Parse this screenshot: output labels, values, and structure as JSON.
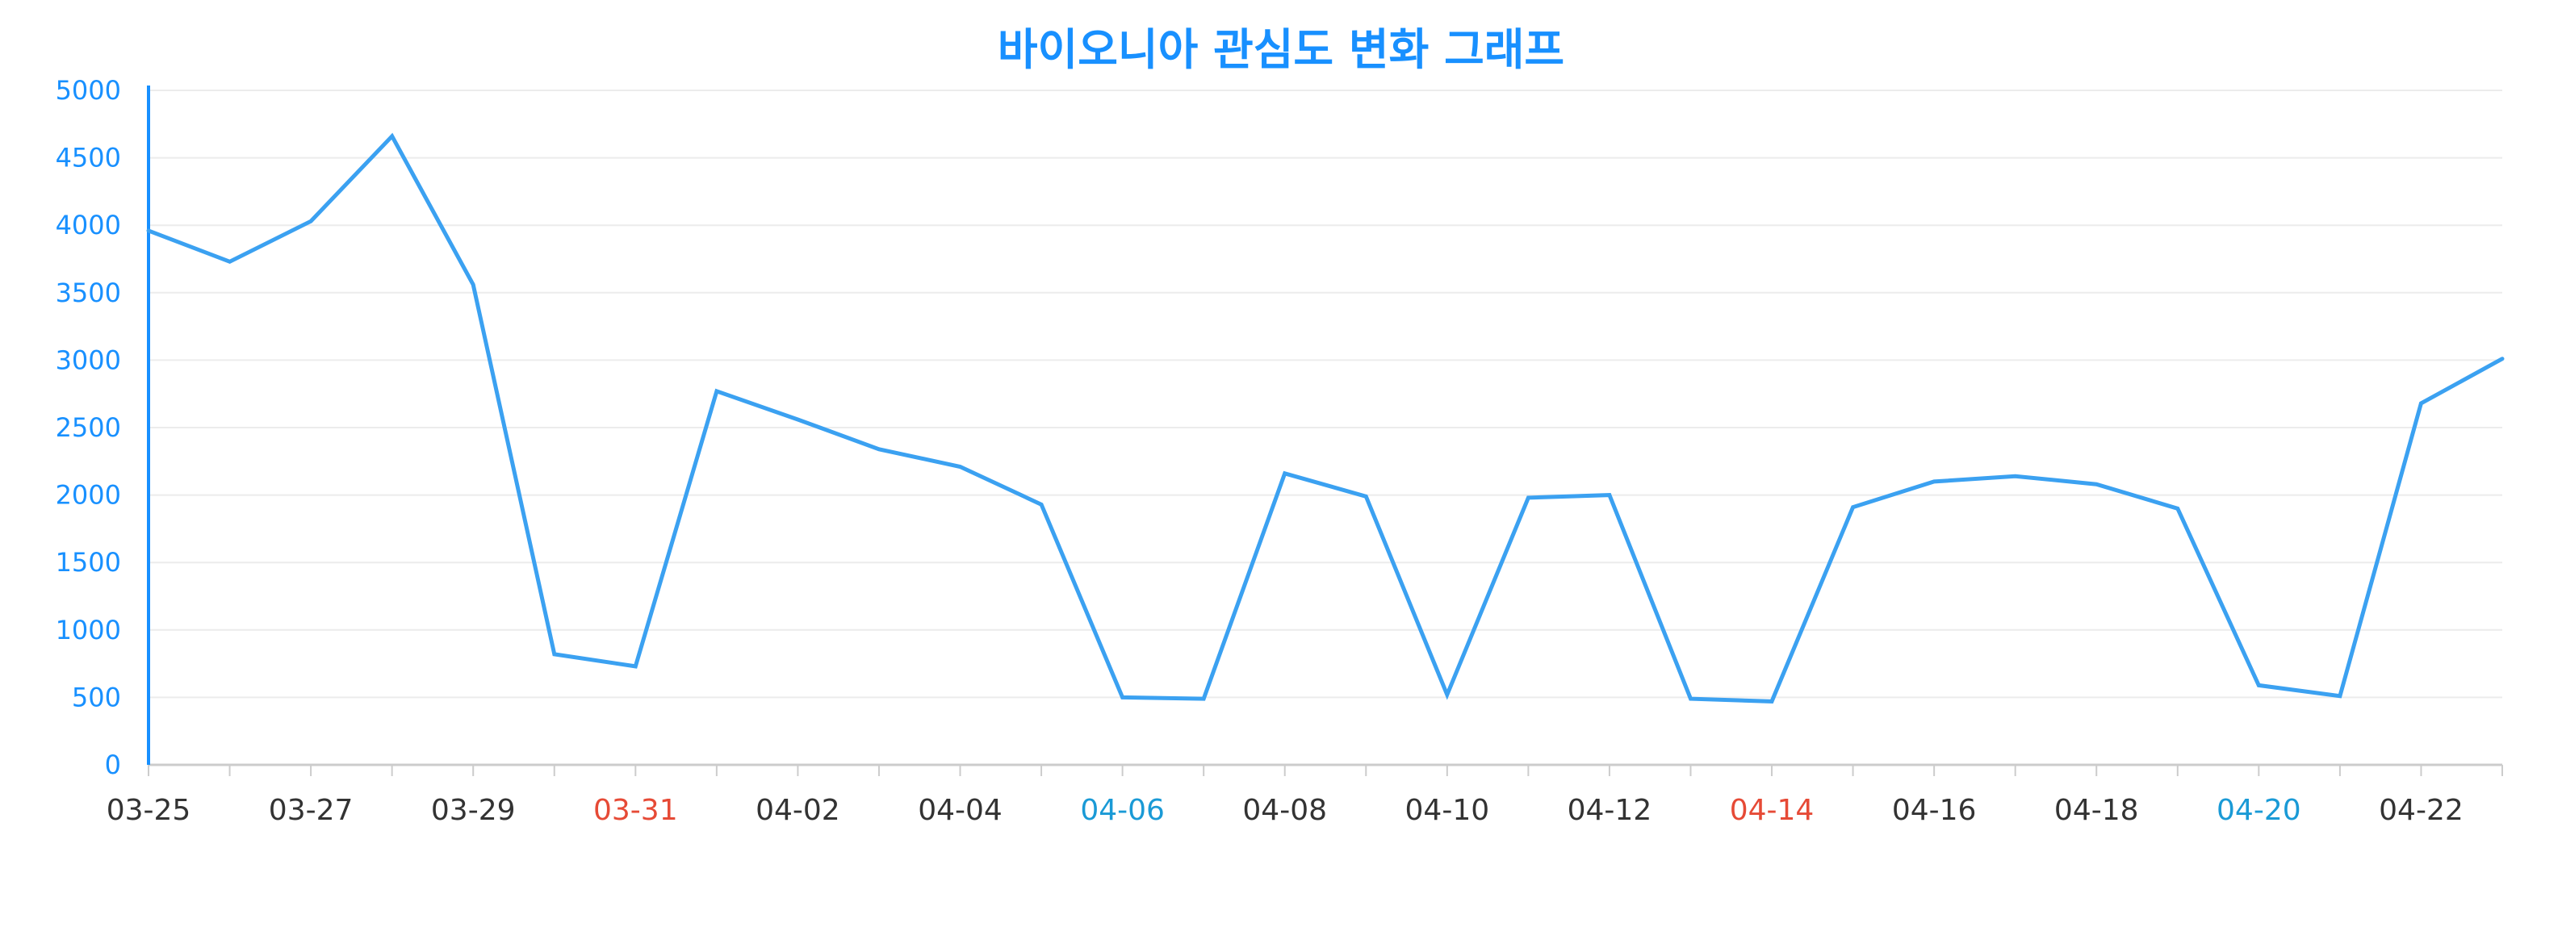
{
  "chart_data": {
    "type": "line",
    "title": "바이오니아 관심도 변화 그래프",
    "xlabel": "",
    "ylabel": "",
    "ylim": [
      0,
      5000
    ],
    "yticks": [
      0,
      500,
      1000,
      1500,
      2000,
      2500,
      3000,
      3500,
      4000,
      4500,
      5000
    ],
    "grid": true,
    "x": [
      "03-25",
      "03-26",
      "03-27",
      "03-28",
      "03-29",
      "03-30",
      "03-31",
      "04-01",
      "04-02",
      "04-03",
      "04-04",
      "04-05",
      "04-06",
      "04-07",
      "04-08",
      "04-09",
      "04-10",
      "04-11",
      "04-12",
      "04-13",
      "04-14",
      "04-15",
      "04-16",
      "04-17",
      "04-18",
      "04-19",
      "04-20",
      "04-21",
      "04-22",
      "04-23"
    ],
    "x_tick_labels": [
      "03-25",
      "03-27",
      "03-29",
      "03-31",
      "04-02",
      "04-04",
      "04-06",
      "04-08",
      "04-10",
      "04-12",
      "04-14",
      "04-16",
      "04-18",
      "04-20",
      "04-22"
    ],
    "series": [
      {
        "values": [
          3960,
          3730,
          4030,
          4660,
          3560,
          820,
          730,
          2770,
          2560,
          2340,
          2210,
          1930,
          500,
          490,
          2160,
          1990,
          520,
          1980,
          2000,
          490,
          470,
          1910,
          2100,
          2140,
          2080,
          1900,
          590,
          510,
          2680,
          3010
        ]
      }
    ],
    "colors": {
      "title": "#1890ff",
      "line": "#3ba1f1",
      "axis": "#1890ff",
      "ytick_text": "#1890ff",
      "xtick_text": "#333333",
      "grid": "#ececec",
      "baseline": "#cccccc",
      "saturday": "#1a9ad6",
      "sunday": "#e64a36"
    }
  }
}
